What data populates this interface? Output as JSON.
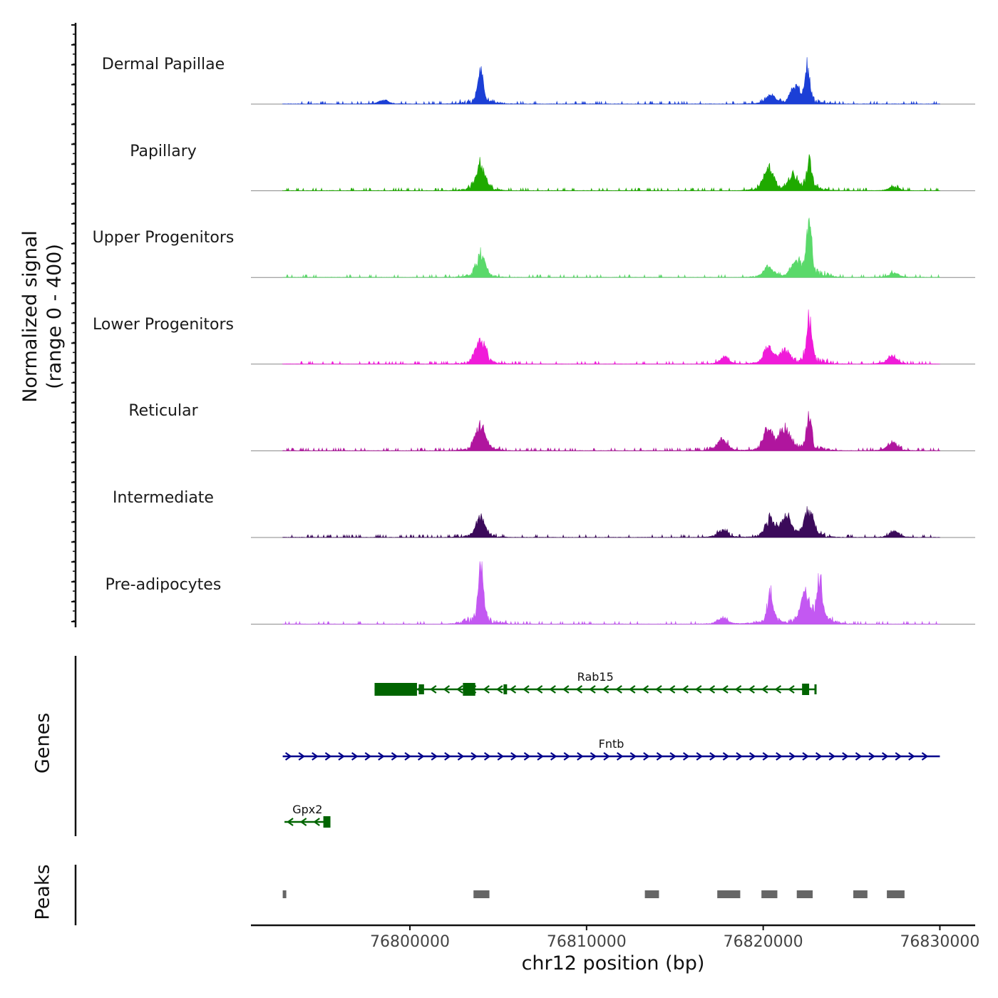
{
  "colors": {
    "Dermal Papillae": "#1b3fd6",
    "Papillary": "#1faa00",
    "Upper Progenitors": "#5ad96a",
    "Lower Progenitors": "#f01bd9",
    "Reticular": "#b0159e",
    "Intermediate": "#3b0a5a",
    "Pre-adipocytes": "#c358f2",
    "gene_minus": "#006400",
    "gene_plus": "#00008b",
    "peak": "#666666"
  },
  "labels": {
    "signal_axis_line1": "Normalized signal",
    "signal_axis_line2": "(range 0 - 400)",
    "genes_axis": "Genes",
    "peaks_axis": "Peaks",
    "x_axis": "chr12 position (bp)"
  },
  "chart_data": {
    "type": "area",
    "title": "",
    "xlabel": "chr12 position (bp)",
    "ylabel": "Normalized signal (range 0 - 400)",
    "xlim": [
      76791000,
      76832000
    ],
    "ylim": [
      0,
      400
    ],
    "xticks": [
      76800000,
      76810000,
      76820000,
      76830000
    ],
    "xtick_labels": [
      "76800000",
      "76810000",
      "76820000",
      "76830000"
    ],
    "tracks": [
      {
        "name": "Dermal Papillae",
        "peaks": [
          [
            76804000,
            390
          ],
          [
            76820400,
            95
          ],
          [
            76822500,
            370
          ],
          [
            76821800,
            160
          ],
          [
            76798500,
            40
          ]
        ]
      },
      {
        "name": "Papillary",
        "peaks": [
          [
            76804000,
            270
          ],
          [
            76820300,
            250
          ],
          [
            76822600,
            320
          ],
          [
            76821700,
            160
          ],
          [
            76827400,
            40
          ]
        ]
      },
      {
        "name": "Upper Progenitors",
        "peaks": [
          [
            76804000,
            230
          ],
          [
            76820300,
            120
          ],
          [
            76822600,
            560
          ],
          [
            76821900,
            150
          ],
          [
            76827400,
            45
          ]
        ]
      },
      {
        "name": "Lower Progenitors",
        "peaks": [
          [
            76804000,
            280
          ],
          [
            76820300,
            170
          ],
          [
            76822600,
            480
          ],
          [
            76821200,
            150
          ],
          [
            76817800,
            70
          ],
          [
            76827300,
            90
          ]
        ]
      },
      {
        "name": "Reticular",
        "peaks": [
          [
            76804000,
            290
          ],
          [
            76820300,
            230
          ],
          [
            76822600,
            360
          ],
          [
            76821200,
            250
          ],
          [
            76817700,
            130
          ],
          [
            76827300,
            90
          ]
        ]
      },
      {
        "name": "Intermediate",
        "peaks": [
          [
            76804000,
            210
          ],
          [
            76820400,
            200
          ],
          [
            76822600,
            280
          ],
          [
            76821300,
            220
          ],
          [
            76817700,
            80
          ],
          [
            76827400,
            60
          ]
        ]
      },
      {
        "name": "Pre-adipocytes",
        "peaks": [
          [
            76804000,
            650
          ],
          [
            76820400,
            360
          ],
          [
            76823200,
            480
          ],
          [
            76822400,
            300
          ],
          [
            76817700,
            70
          ]
        ]
      }
    ],
    "genes": [
      {
        "name": "Rab15",
        "strand": "-",
        "start": 76798000,
        "end": 76823000
      },
      {
        "name": "Fntb",
        "strand": "+",
        "start": 76792800,
        "end": 76830000
      },
      {
        "name": "Gpx2",
        "strand": "-",
        "start": 76792900,
        "end": 76795500
      }
    ],
    "peaks": [
      [
        76792800,
        76793000
      ],
      [
        76803600,
        76804500
      ],
      [
        76813300,
        76814100
      ],
      [
        76817400,
        76818700
      ],
      [
        76819900,
        76820800
      ],
      [
        76821900,
        76822800
      ],
      [
        76825100,
        76825900
      ],
      [
        76827000,
        76828000
      ]
    ]
  }
}
